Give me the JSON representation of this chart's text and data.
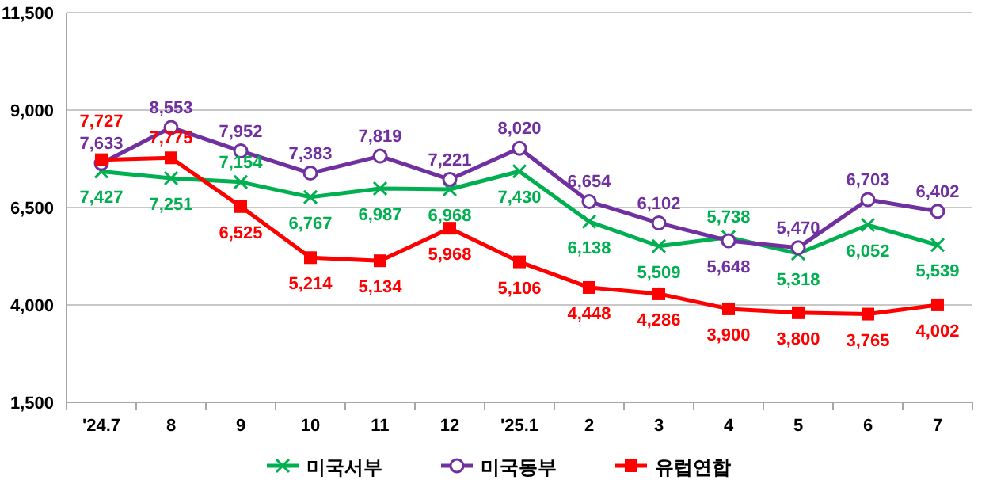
{
  "chart_data": {
    "type": "line",
    "categories": [
      "'24.7",
      "8",
      "9",
      "10",
      "11",
      "12",
      "'25.1",
      "2",
      "3",
      "4",
      "5",
      "6",
      "7"
    ],
    "series": [
      {
        "name": "미국서부",
        "color": "#00b050",
        "marker": "cross",
        "values": [
          7427,
          7251,
          7154,
          6767,
          6987,
          6968,
          7430,
          6138,
          5509,
          5738,
          5318,
          6052,
          5539
        ],
        "value_labels": [
          "7,427",
          "7,251",
          "7,154",
          "6,767",
          "6,987",
          "6,968",
          "7,430",
          "6,138",
          "5,509",
          "5,738",
          "5,318",
          "6,052",
          "5,539"
        ]
      },
      {
        "name": "미국동부",
        "color": "#7030a0",
        "marker": "circle",
        "values": [
          7633,
          8553,
          7952,
          7383,
          7819,
          7221,
          8020,
          6654,
          6102,
          5648,
          5470,
          6703,
          6402
        ],
        "value_labels": [
          "7,633",
          "8,553",
          "7,952",
          "7,383",
          "7,819",
          "7,221",
          "8,020",
          "6,654",
          "6,102",
          "5,648",
          "5,470",
          "6,703",
          "6,402"
        ]
      },
      {
        "name": "유럽연합",
        "color": "#ff0000",
        "marker": "square",
        "values": [
          7727,
          7775,
          6525,
          5214,
          5134,
          5968,
          5106,
          4448,
          4286,
          3900,
          3800,
          3765,
          4002
        ],
        "value_labels": [
          "7,727",
          "7,775",
          "6,525",
          "5,214",
          "5,134",
          "5,968",
          "5,106",
          "4,448",
          "4,286",
          "3,900",
          "3,800",
          "3,765",
          "4,002"
        ]
      }
    ],
    "ylim": [
      1500,
      11500
    ],
    "yticks": [
      {
        "value": 1500,
        "label": "1,500"
      },
      {
        "value": 4000,
        "label": "4,000"
      },
      {
        "value": 6500,
        "label": "6,500"
      },
      {
        "value": 9000,
        "label": "9,000"
      },
      {
        "value": 11500,
        "label": "11,500"
      }
    ],
    "grid": "y",
    "legend": "bottom"
  }
}
